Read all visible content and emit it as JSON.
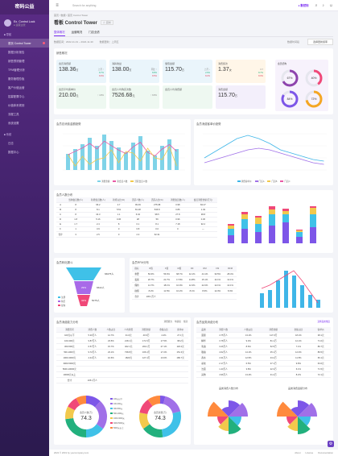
{
  "app": {
    "logo": "密码公益",
    "user_name": "Ex. Control Lock",
    "user_sub": "● 运营主管",
    "search_placeholder": "Search for anything",
    "brand": "● 默然狗",
    "lang": "CN"
  },
  "menu": {
    "section1": "■ 导航",
    "items": [
      {
        "label": "首页 Control Tower",
        "active": true
      },
      {
        "label": "数据分析报告"
      },
      {
        "label": "销售预测管理"
      },
      {
        "label": "TPM管理分析"
      },
      {
        "label": "服务管理总板"
      },
      {
        "label": "客户价值运营"
      },
      {
        "label": "招募配置中心"
      },
      {
        "label": "价值体系规则"
      },
      {
        "label": "流程工具"
      },
      {
        "label": "系统设置"
      }
    ],
    "section2": "■ 系统",
    "items2": [
      {
        "label": "日志"
      },
      {
        "label": "数据中心"
      }
    ]
  },
  "crumb": "首页 / 数据 / 首页 Control Tower",
  "page": {
    "title": "看板 Control Tower",
    "tag": "☆ 实时",
    "tabs": [
      "整体概况",
      "运营概况",
      "门店业绩"
    ],
    "meta1": "数据区间：2022-11-01 ~ 2022-11-30",
    "meta2": "数据更新：上周五",
    "meta_label": "数据时间段",
    "meta_select": "选择更新频率"
  },
  "overview": {
    "title": "销售概况",
    "kpis": [
      {
        "label": "会员消费额",
        "value": "138.36",
        "unit": "万",
        "s1": "上月 ↑",
        "s2": "8.7%",
        "s3": "8.0%"
      },
      {
        "label": "消耗收益",
        "value": "138.00",
        "unit": "万",
        "s1": "同比 ↑",
        "s2": "8.8%",
        "s3": "8.5%"
      },
      {
        "label": "储值金额",
        "value": "115.70",
        "unit": "万",
        "s1": "上月 ↓",
        "s2": "2.6%",
        "s3": "8.2%"
      },
      {
        "label": "消费频次",
        "value": "1.37",
        "unit": "次",
        "s1": "0.7",
        "s2": "8.7%",
        "s3": "8.0%"
      },
      {
        "label": "会员平均客单价",
        "value": "210.00",
        "unit": "元",
        "s1": "↑ 4.8%",
        "s2": "",
        "s3": ""
      },
      {
        "label": "会员人均购买次数",
        "value": "7526.68",
        "unit": "元",
        "s1": "↑ 8.8%",
        "s2": "",
        "s3": ""
      },
      {
        "label": "会员人均消费额",
        "value": "",
        "unit": "",
        "s1": "",
        "s2": "",
        "s3": ""
      },
      {
        "label": "消费金额",
        "value": "115.70",
        "unit": "万",
        "s1": "",
        "s2": "",
        "s3": ""
      }
    ],
    "rings": {
      "title": "会员结构",
      "r1": "67%",
      "r2": "40%",
      "r3": "84%",
      "r4": "72%"
    }
  },
  "chart1": {
    "title": "会员总消费金额趋势",
    "legend": [
      "消费金额",
      "新会员人数",
      "活跃会员人数"
    ]
  },
  "chart2": {
    "title": "会员消费客单价趋势",
    "legend": [
      "消费客单价",
      "门店A",
      "门店B",
      "门店C"
    ]
  },
  "chart3": {
    "title": "会员人数分布",
    "headers": [
      "",
      "当前会员数(人)",
      "新增会员数(人)",
      "新增占比(%)",
      "活跃人数(人)",
      "活跃占比(%)",
      "消费会员数(人)",
      "会员消费金额(万元)"
    ],
    "rows": [
      [
        "A",
        "8",
        "96.2",
        "2.7",
        "99.39",
        "275.98",
        "0.98",
        "84.47"
      ],
      [
        "B",
        "8",
        "8.1",
        "5.51",
        "81.28",
        "546.8",
        "0.86",
        "1.49"
      ],
      [
        "C",
        "8",
        "34.3",
        "1.1",
        "6.04",
        "98.5",
        "27.8",
        "38.8"
      ],
      [
        "D",
        "1.8",
        "5.16",
        "0.36",
        "28",
        "59",
        "0.96",
        "0.36"
      ],
      [
        "E",
        "1.7",
        "2.4",
        "8",
        "0.1",
        "8.1",
        "7.18",
        "92.2"
      ],
      [
        "F",
        "1",
        "3.9",
        "0",
        "6.8",
        "0.0",
        "0",
        "—"
      ],
      [
        "合计",
        "3",
        "2.5",
        "0",
        "2.3",
        "62.31",
        "",
        ""
      ]
    ],
    "legend": [
      "会员消费额",
      "会员人数",
      "门店A",
      "门店B"
    ]
  },
  "funnel": {
    "title": "会员转化漏斗",
    "labels": [
      "66075人",
      "6622人",
      "5075人"
    ],
    "pct": [
      "29%",
      "32%"
    ],
    "legend": [
      "注册",
      "购买",
      "复购"
    ]
  },
  "chart5": {
    "title": "会员RFM分布",
    "headers": [
      "指标",
      "R值",
      "F值",
      "M值",
      "RF",
      "RM",
      "FM",
      "RFM"
    ],
    "rows": [
      [
        "重要",
        "50.6%",
        "56.6%",
        "68.7%",
        "42.1%",
        "44.1%",
        "33.5%",
        "28.4%"
      ],
      [
        "发展",
        "20.7%",
        "21.7%",
        "17.8%",
        "14.8%",
        "15.1%",
        "14.1%",
        "12.1%"
      ],
      [
        "保持",
        "14.7%",
        "18.1%",
        "10.9%",
        "12.3%",
        "22.0%",
        "12.1%",
        "10.1%"
      ],
      [
        "挽留",
        "8.2%",
        "11.5%",
        "10.2%",
        "8.1%",
        "8.6%",
        "12.3%",
        "8.3%"
      ],
      [
        "合计",
        "105.1万人",
        "",
        "",
        "",
        "",
        "",
        ""
      ]
    ],
    "legend": [
      "会员数",
      "占比"
    ]
  },
  "table6": {
    "title": "会员消费能力分布",
    "cols": [
      "消费区间",
      "消费人数",
      "人数占比",
      "人均消费",
      "消费金额",
      "金额占比",
      "客单价"
    ],
    "rows": [
      [
        "100元以下",
        "5.20万人",
        "12.7%",
        "31.6元",
        "40.9万",
        "4.2%",
        "27.1元"
      ],
      [
        "100-300元",
        "9.87万人",
        "23.5%",
        "218.1元",
        "171.5万",
        "17.5%",
        "98.2元"
      ],
      [
        "300-500元",
        "6.57万人",
        "15.7%",
        "402.1元",
        "264.1万",
        "27.1%",
        "118.4元"
      ],
      [
        "500-1000元",
        "9.72万人",
        "23.1%",
        "738.8元",
        "166.4万",
        "17.2%",
        "151.3元"
      ],
      [
        "1000-3000元",
        "4.44万人",
        "10.6%",
        "1823元",
        "127.4万",
        "13.0%",
        "180.7元"
      ],
      [
        "3000-5000元",
        "",
        "",
        "",
        "",
        "",
        ""
      ],
      [
        "5000-10000元",
        "",
        "",
        "",
        "",
        "",
        ""
      ],
      [
        "10000元以上",
        "",
        "",
        "",
        "",
        "",
        ""
      ],
      [
        "合计",
        "105.1万人",
        "",
        "",
        "",
        "",
        ""
      ]
    ],
    "tabs": [
      "消费能力",
      "年龄段",
      "性别"
    ]
  },
  "table7": {
    "title": "会员品类消费分布",
    "cols": [
      "品类",
      "消费人数",
      "人数占比",
      "消费金额",
      "金额占比",
      "客单价"
    ],
    "rows": [
      [
        "面膜",
        "4.75万人",
        "13.1%",
        "117.9万",
        "18.1%",
        "38.1元"
      ],
      [
        "精华",
        "3.78万人",
        "9.3%",
        "81.1万",
        "12.1%",
        "71.0元"
      ],
      [
        "乳霜",
        "3.26万人",
        "8.6%",
        "52.5万",
        "7.1%",
        "89.7元"
      ],
      [
        "眼霜",
        "4.62万人",
        "14.1%",
        "45.1万",
        "12.0%",
        "89.5元"
      ],
      [
        "香水",
        "4.31万人",
        "12.5%",
        "43.2万",
        "11.5%",
        "66.1元"
      ],
      [
        "彩妆",
        "2.17万人",
        "6.5%",
        "37.1万",
        "9.8%",
        "63.6元"
      ],
      [
        "洁面",
        "1.43万人",
        "3.8%",
        "22.3万",
        "6.1%",
        "71.5元"
      ],
      [
        "其他",
        "4.96万人",
        "13.4%",
        "31.2万",
        "8.2%",
        "72.1元"
      ]
    ],
    "select": "选择品类维度"
  },
  "donuts": {
    "d1_label": "会员人数(万)",
    "d1_value": "74.3",
    "d2_label": "会员消费(万)",
    "d2_value": "74.3",
    "legend": [
      "100元以下",
      "100-300元",
      "300-500元",
      "500-1000元",
      "1000-3000元",
      "3000-5000元",
      "5000元以上"
    ]
  },
  "radial": {
    "t1": "品类消费人数分布",
    "t2": "品类消费金额分布"
  },
  "footer": {
    "left": "2022 © 2019 by yourcompany.com",
    "right": [
      "About",
      "License",
      "Documentation"
    ]
  }
}
